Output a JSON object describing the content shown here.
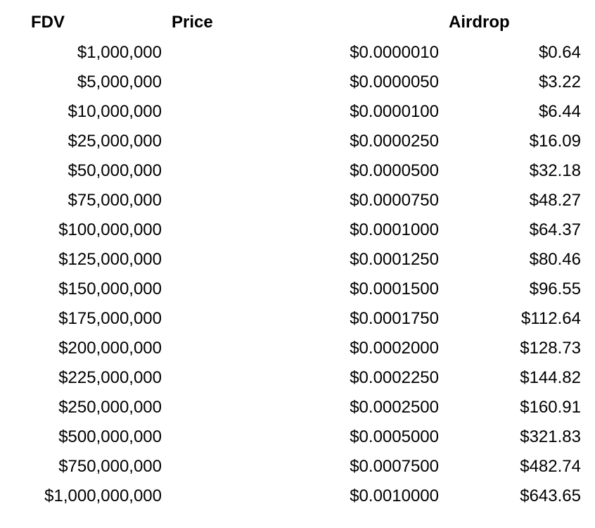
{
  "table": {
    "headers": {
      "fdv": "FDV",
      "price": "Price",
      "airdrop": "Airdrop"
    },
    "rows": [
      {
        "fdv": "$1,000,000",
        "price": "$0.0000010",
        "airdrop": "$0.64"
      },
      {
        "fdv": "$5,000,000",
        "price": "$0.0000050",
        "airdrop": "$3.22"
      },
      {
        "fdv": "$10,000,000",
        "price": "$0.0000100",
        "airdrop": "$6.44"
      },
      {
        "fdv": "$25,000,000",
        "price": "$0.0000250",
        "airdrop": "$16.09"
      },
      {
        "fdv": "$50,000,000",
        "price": "$0.0000500",
        "airdrop": "$32.18"
      },
      {
        "fdv": "$75,000,000",
        "price": "$0.0000750",
        "airdrop": "$48.27"
      },
      {
        "fdv": "$100,000,000",
        "price": "$0.0001000",
        "airdrop": "$64.37"
      },
      {
        "fdv": "$125,000,000",
        "price": "$0.0001250",
        "airdrop": "$80.46"
      },
      {
        "fdv": "$150,000,000",
        "price": "$0.0001500",
        "airdrop": "$96.55"
      },
      {
        "fdv": "$175,000,000",
        "price": "$0.0001750",
        "airdrop": "$112.64"
      },
      {
        "fdv": "$200,000,000",
        "price": "$0.0002000",
        "airdrop": "$128.73"
      },
      {
        "fdv": "$225,000,000",
        "price": "$0.0002250",
        "airdrop": "$144.82"
      },
      {
        "fdv": "$250,000,000",
        "price": "$0.0002500",
        "airdrop": "$160.91"
      },
      {
        "fdv": "$500,000,000",
        "price": "$0.0005000",
        "airdrop": "$321.83"
      },
      {
        "fdv": "$750,000,000",
        "price": "$0.0007500",
        "airdrop": "$482.74"
      },
      {
        "fdv": "$1,000,000,000",
        "price": "$0.0010000",
        "airdrop": "$643.65"
      }
    ]
  }
}
